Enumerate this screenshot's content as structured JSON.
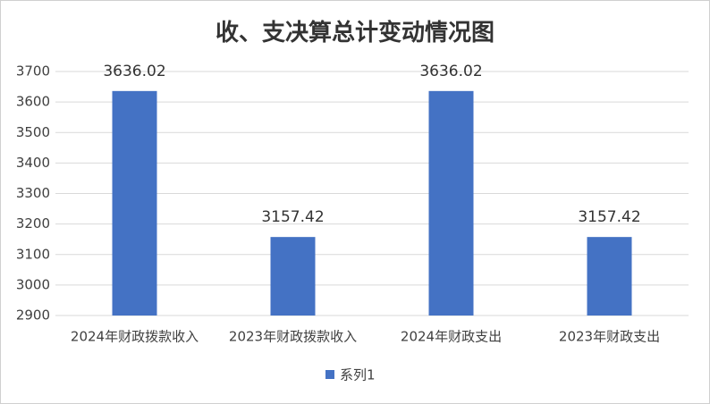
{
  "chart_data": {
    "type": "bar",
    "title": "收、支决算总计变动情况图",
    "categories": [
      "2024年财政拨款收入",
      "2023年财政拨款收入",
      "2024年财政支出",
      "2023年财政支出"
    ],
    "series": [
      {
        "name": "系列1",
        "color": "#4472c4",
        "values": [
          3636.02,
          3157.42,
          3636.02,
          3157.42
        ]
      }
    ],
    "ylim": [
      2900,
      3700
    ],
    "yticks": [
      2900,
      3000,
      3100,
      3200,
      3300,
      3400,
      3500,
      3600,
      3700
    ],
    "grid": true,
    "legend": "bottom",
    "data_labels": true
  }
}
